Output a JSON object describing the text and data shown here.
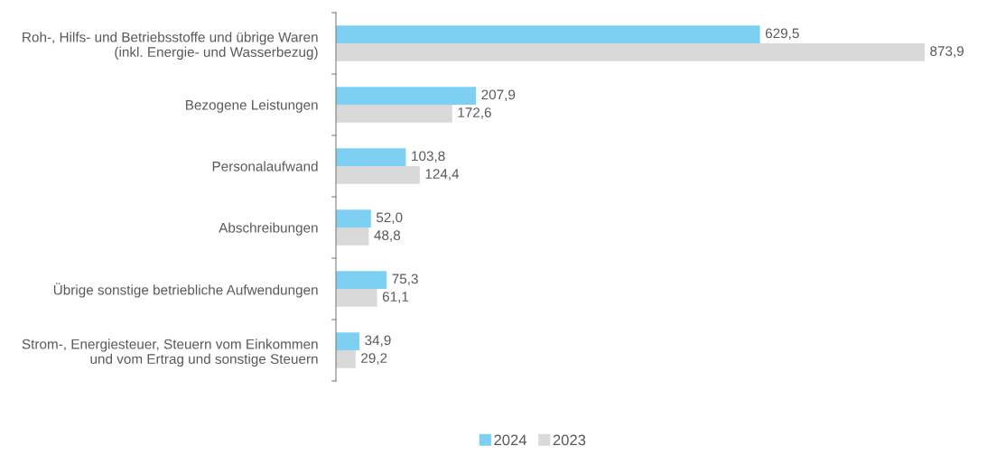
{
  "chart_data": {
    "type": "bar",
    "orientation": "horizontal",
    "categories": [
      "Roh-, Hilfs- und Betriebsstoffe und übrige Waren\n(inkl. Energie- und Wasserbezug)",
      "Bezogene Leistungen",
      "Personalaufwand",
      "Abschreibungen",
      "Übrige sonstige betriebliche Aufwendungen",
      "Strom-, Energiesteuer, Steuern vom Einkommen\nund vom Ertrag und sonstige Steuern"
    ],
    "series": [
      {
        "name": "2024",
        "color": "#7dd0f2",
        "values": [
          629.5,
          207.9,
          103.8,
          52.0,
          75.3,
          34.9
        ],
        "value_labels": [
          "629,5",
          "207,9",
          "103,8",
          "52,0",
          "75,3",
          "34,9"
        ]
      },
      {
        "name": "2023",
        "color": "#d9d9d9",
        "values": [
          873.9,
          172.6,
          124.4,
          48.8,
          61.1,
          29.2
        ],
        "value_labels": [
          "873,9",
          "172,6",
          "124,4",
          "48,8",
          "61,1",
          "29,2"
        ]
      }
    ],
    "legend": "bottom",
    "grid": false
  }
}
